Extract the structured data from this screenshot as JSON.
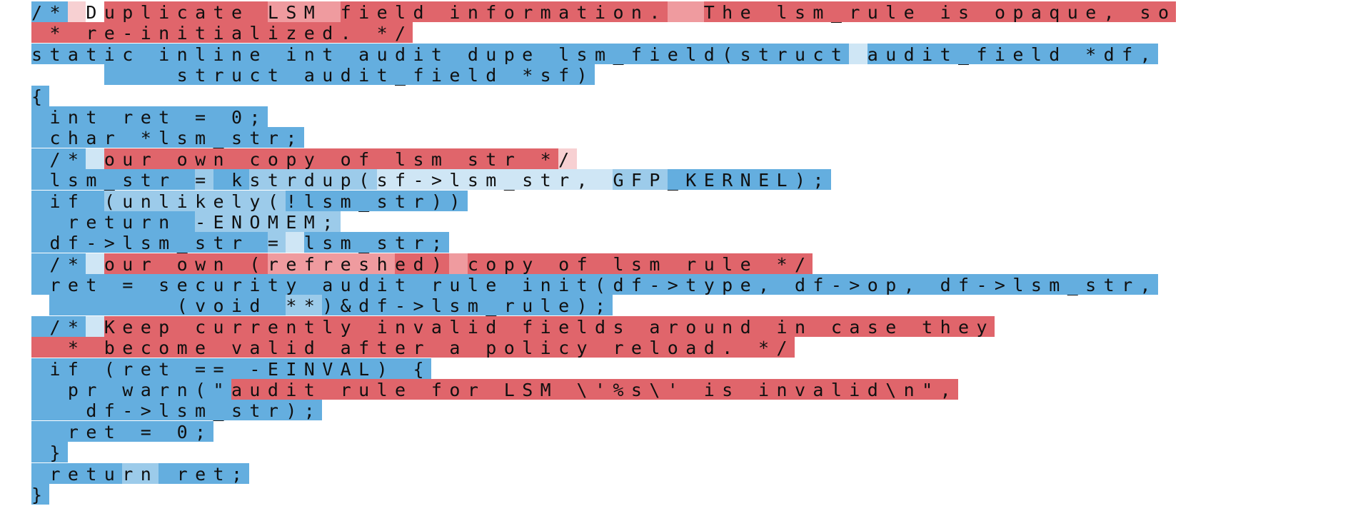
{
  "colors": {
    "blue": "#64aedf",
    "blue_dark": "#5ea8db",
    "blue_light": "#9ccbea",
    "blue_pale": "#cfe6f5",
    "red": "#e0656b",
    "red_light": "#ef9b9f",
    "red_pale": "#f7d0d2",
    "white": "#ffffff"
  },
  "lines": [
    [
      {
        "t": "/*",
        "c": "blue"
      },
      {
        "t": " ",
        "c": "red_pale"
      },
      {
        "t": "D",
        "c": "white"
      },
      {
        "t": "uplicate ",
        "c": "red"
      },
      {
        "t": "LSM ",
        "c": "red_light"
      },
      {
        "t": "field information.",
        "c": "red"
      },
      {
        "t": "  ",
        "c": "red_light"
      },
      {
        "t": "The lsm_rule is opaque, so",
        "c": "red"
      }
    ],
    [
      {
        "t": " * re-initialized. */",
        "c": "red"
      }
    ],
    [
      {
        "t": "static inline int audit_dupe_lsm_field(struct",
        "c": "blue"
      },
      {
        "t": " ",
        "c": "blue_pale"
      },
      {
        "t": "audit_field *df,",
        "c": "blue"
      }
    ],
    [
      {
        "t": "    ",
        "c": "white"
      },
      {
        "t": "    struct audit_field *sf)",
        "c": "blue"
      }
    ],
    [
      {
        "t": "{",
        "c": "blue"
      }
    ],
    [
      {
        "t": " int ret = 0;",
        "c": "blue"
      }
    ],
    [
      {
        "t": " char *lsm_str;",
        "c": "blue"
      }
    ],
    [
      {
        "t": " /*",
        "c": "blue"
      },
      {
        "t": " ",
        "c": "blue_pale"
      },
      {
        "t": "our own copy of lsm_str *",
        "c": "red"
      },
      {
        "t": "/",
        "c": "red_pale"
      }
    ],
    [
      {
        "t": " lsm_str ",
        "c": "blue"
      },
      {
        "t": "=",
        "c": "blue_light"
      },
      {
        "t": " k",
        "c": "blue"
      },
      {
        "t": "strdup(",
        "c": "blue_light"
      },
      {
        "t": "sf->lsm_str, ",
        "c": "blue_pale"
      },
      {
        "t": "GFP",
        "c": "blue_light"
      },
      {
        "t": "_KERNEL);",
        "c": "blue"
      }
    ],
    [
      {
        "t": " if ",
        "c": "blue"
      },
      {
        "t": "(unlikely(",
        "c": "blue_light"
      },
      {
        "t": "!lsm_str))",
        "c": "blue"
      }
    ],
    [
      {
        "t": "  return ",
        "c": "blue"
      },
      {
        "t": "-ENOMEM;",
        "c": "blue_light"
      }
    ],
    [
      {
        "t": " df->lsm_str ",
        "c": "blue"
      },
      {
        "t": "=",
        "c": "blue_light"
      },
      {
        "t": " ",
        "c": "blue_pale"
      },
      {
        "t": "lsm_str;",
        "c": "blue"
      }
    ],
    [
      {
        "t": " /*",
        "c": "blue"
      },
      {
        "t": " ",
        "c": "blue_pale"
      },
      {
        "t": "our own (",
        "c": "red"
      },
      {
        "t": "refresh",
        "c": "red_light"
      },
      {
        "t": "ed)",
        "c": "red"
      },
      {
        "t": " ",
        "c": "red_light"
      },
      {
        "t": "copy of lsm_rule */",
        "c": "red"
      }
    ],
    [
      {
        "t": " ret = security_audit_rule_init(df->type, df->op, df->lsm_str,",
        "c": "blue"
      }
    ],
    [
      {
        "t": " ",
        "c": "white"
      },
      {
        "t": "       (void ",
        "c": "blue"
      },
      {
        "t": "**",
        "c": "blue_light"
      },
      {
        "t": ")&df->lsm_rule);",
        "c": "blue"
      }
    ],
    [
      {
        "t": " /*",
        "c": "blue"
      },
      {
        "t": " ",
        "c": "blue_pale"
      },
      {
        "t": "Keep currently invalid fields around in case they",
        "c": "red"
      }
    ],
    [
      {
        "t": "  * become valid after a policy reload. */",
        "c": "red"
      }
    ],
    [
      {
        "t": " if (ret == -EINVAL) {",
        "c": "blue"
      }
    ],
    [
      {
        "t": "  pr_warn(\"",
        "c": "blue"
      },
      {
        "t": "audit rule for LSM \\'%s\\' is invalid\\n\",",
        "c": "red"
      }
    ],
    [
      {
        "t": "   df->lsm_str);",
        "c": "blue"
      }
    ],
    [
      {
        "t": "  ret = 0;",
        "c": "blue"
      }
    ],
    [
      {
        "t": " }",
        "c": "blue"
      }
    ],
    [
      {
        "t": " retu",
        "c": "blue"
      },
      {
        "t": "rn",
        "c": "blue_light"
      },
      {
        "t": " ret;",
        "c": "blue"
      }
    ],
    [
      {
        "t": "}",
        "c": "blue"
      }
    ]
  ]
}
